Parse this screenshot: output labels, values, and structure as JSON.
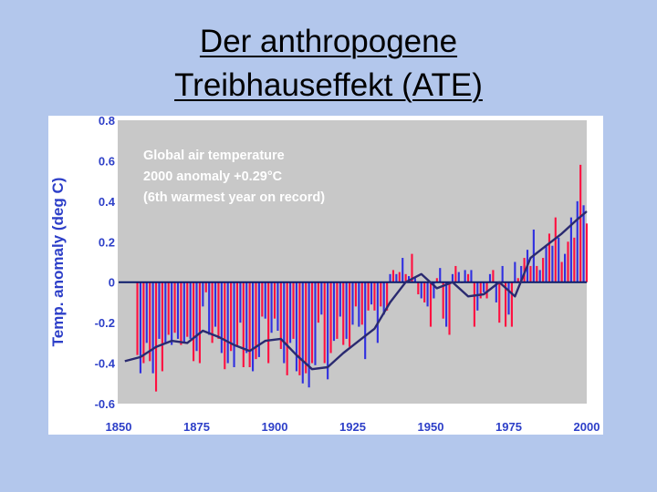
{
  "slide": {
    "title_line1": "Der anthropogene",
    "title_line2": "Treibhauseffekt (ATE)"
  },
  "chart_data": {
    "type": "bar",
    "ylabel": "Temp. anomaly (deg C)",
    "xlabel": "",
    "xlim": [
      1850,
      2000
    ],
    "ylim": [
      -0.6,
      0.8
    ],
    "x_ticks": [
      1850,
      1875,
      1900,
      1925,
      1950,
      1975,
      2000
    ],
    "x_tick_labels": [
      "1850",
      "1875",
      "1900",
      "1925",
      "1950",
      "1975",
      "2000"
    ],
    "y_ticks": [
      -0.6,
      -0.4,
      -0.2,
      0,
      0.2,
      0.4,
      0.6,
      0.8
    ],
    "y_tick_labels": [
      "-0.6",
      "-0.4",
      "-0.2",
      "0",
      "0.2",
      "0.4",
      "0.6",
      "0.8"
    ],
    "annotation_lines": [
      "Global air temperature",
      "2000 anomaly +0.29°C",
      "(6th warmest year on record)"
    ],
    "grid": false,
    "colors": {
      "panel_fill": "#c8c8c8",
      "panel_frame": "#ffffff",
      "text": "#2d3fc8",
      "bar_warm": "#ff1040",
      "bar_cool": "#3030e0",
      "smooth_line": "#2a2a70",
      "zero_line": "#0a1a6a"
    },
    "series": [
      {
        "kind": "annual",
        "x": [
          1856,
          1857,
          1858,
          1859,
          1860,
          1861,
          1862,
          1863,
          1864,
          1865,
          1866,
          1867,
          1868,
          1869,
          1870,
          1871,
          1872,
          1873,
          1874,
          1875,
          1876,
          1877,
          1878,
          1879,
          1880,
          1881,
          1882,
          1883,
          1884,
          1885,
          1886,
          1887,
          1888,
          1889,
          1890,
          1891,
          1892,
          1893,
          1894,
          1895,
          1896,
          1897,
          1898,
          1899,
          1900,
          1901,
          1902,
          1903,
          1904,
          1905,
          1906,
          1907,
          1908,
          1909,
          1910,
          1911,
          1912,
          1913,
          1914,
          1915,
          1916,
          1917,
          1918,
          1919,
          1920,
          1921,
          1922,
          1923,
          1924,
          1925,
          1926,
          1927,
          1928,
          1929,
          1930,
          1931,
          1932,
          1933,
          1934,
          1935,
          1936,
          1937,
          1938,
          1939,
          1940,
          1941,
          1942,
          1943,
          1944,
          1945,
          1946,
          1947,
          1948,
          1949,
          1950,
          1951,
          1952,
          1953,
          1954,
          1955,
          1956,
          1957,
          1958,
          1959,
          1960,
          1961,
          1962,
          1963,
          1964,
          1965,
          1966,
          1967,
          1968,
          1969,
          1970,
          1971,
          1972,
          1973,
          1974,
          1975,
          1976,
          1977,
          1978,
          1979,
          1980,
          1981,
          1982,
          1983,
          1984,
          1985,
          1986,
          1987,
          1988,
          1989,
          1990,
          1991,
          1992,
          1993,
          1994,
          1995,
          1996,
          1997,
          1998,
          1999,
          2000
        ],
        "values": [
          -0.36,
          -0.45,
          -0.4,
          -0.3,
          -0.39,
          -0.45,
          -0.54,
          -0.28,
          -0.44,
          -0.3,
          -0.26,
          -0.31,
          -0.25,
          -0.28,
          -0.31,
          -0.3,
          -0.27,
          -0.28,
          -0.39,
          -0.34,
          -0.4,
          -0.12,
          -0.05,
          -0.26,
          -0.3,
          -0.22,
          -0.28,
          -0.35,
          -0.43,
          -0.4,
          -0.34,
          -0.42,
          -0.32,
          -0.2,
          -0.42,
          -0.35,
          -0.42,
          -0.44,
          -0.38,
          -0.37,
          -0.17,
          -0.18,
          -0.4,
          -0.25,
          -0.18,
          -0.24,
          -0.33,
          -0.4,
          -0.46,
          -0.3,
          -0.28,
          -0.44,
          -0.46,
          -0.5,
          -0.45,
          -0.52,
          -0.4,
          -0.41,
          -0.2,
          -0.16,
          -0.4,
          -0.48,
          -0.35,
          -0.29,
          -0.28,
          -0.17,
          -0.31,
          -0.28,
          -0.32,
          -0.21,
          -0.12,
          -0.22,
          -0.21,
          -0.38,
          -0.14,
          -0.11,
          -0.14,
          -0.3,
          -0.12,
          -0.16,
          -0.14,
          0.04,
          0.06,
          0.04,
          0.05,
          0.12,
          0.04,
          0.03,
          0.14,
          0.02,
          -0.06,
          -0.08,
          -0.1,
          -0.12,
          -0.22,
          -0.08,
          0.02,
          0.07,
          -0.18,
          -0.22,
          -0.26,
          0.04,
          0.08,
          0.05,
          0.0,
          0.06,
          0.04,
          0.06,
          -0.22,
          -0.14,
          -0.08,
          -0.05,
          -0.08,
          0.04,
          0.06,
          -0.1,
          -0.2,
          0.08,
          -0.22,
          -0.16,
          -0.22,
          0.1,
          0.02,
          0.08,
          0.12,
          0.16,
          0.08,
          0.26,
          0.08,
          0.06,
          0.12,
          0.18,
          0.24,
          0.18,
          0.32,
          0.22,
          0.1,
          0.14,
          0.2,
          0.32,
          0.22,
          0.4,
          0.58,
          0.38,
          0.29
        ]
      },
      {
        "kind": "smoothed",
        "x": [
          1852,
          1857,
          1862,
          1867,
          1872,
          1877,
          1882,
          1887,
          1892,
          1897,
          1902,
          1907,
          1912,
          1917,
          1922,
          1927,
          1932,
          1937,
          1942,
          1947,
          1952,
          1957,
          1962,
          1967,
          1972,
          1977,
          1982,
          1987,
          1992,
          1997,
          2000
        ],
        "values": [
          -0.39,
          -0.37,
          -0.32,
          -0.29,
          -0.3,
          -0.24,
          -0.27,
          -0.31,
          -0.34,
          -0.29,
          -0.28,
          -0.36,
          -0.43,
          -0.42,
          -0.35,
          -0.29,
          -0.23,
          -0.1,
          0.0,
          0.04,
          -0.03,
          0.0,
          -0.07,
          -0.06,
          0.0,
          -0.07,
          0.12,
          0.18,
          0.24,
          0.31,
          0.35
        ]
      }
    ]
  }
}
